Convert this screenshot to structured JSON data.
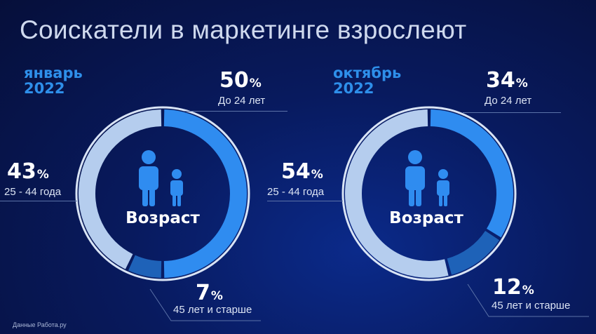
{
  "title": "Соискатели в маркетинге взрослеют",
  "source": "Данные Работа.ру",
  "center_label": "Возраст",
  "colors": {
    "young": "#2f8cf0",
    "middle": "#b5cdee",
    "senior": "#1e62b8",
    "ring_outer": "#d9e4f5",
    "period": "#2e8fea"
  },
  "chart_data": [
    {
      "type": "pie",
      "period_line1": "январь",
      "period_line2": "2022",
      "slices": [
        {
          "label": "До 24 лет",
          "value": 50,
          "display": "50"
        },
        {
          "label": "45 лет и старше",
          "value": 7,
          "display": "7"
        },
        {
          "label": "25 - 44 года",
          "value": 43,
          "display": "43"
        }
      ],
      "unit": "%"
    },
    {
      "type": "pie",
      "period_line1": "октябрь",
      "period_line2": "2022",
      "slices": [
        {
          "label": "До 24 лет",
          "value": 34,
          "display": "34"
        },
        {
          "label": "45 лет и старше",
          "value": 12,
          "display": "12"
        },
        {
          "label": "25 - 44 года",
          "value": 54,
          "display": "54"
        }
      ],
      "unit": "%"
    }
  ]
}
